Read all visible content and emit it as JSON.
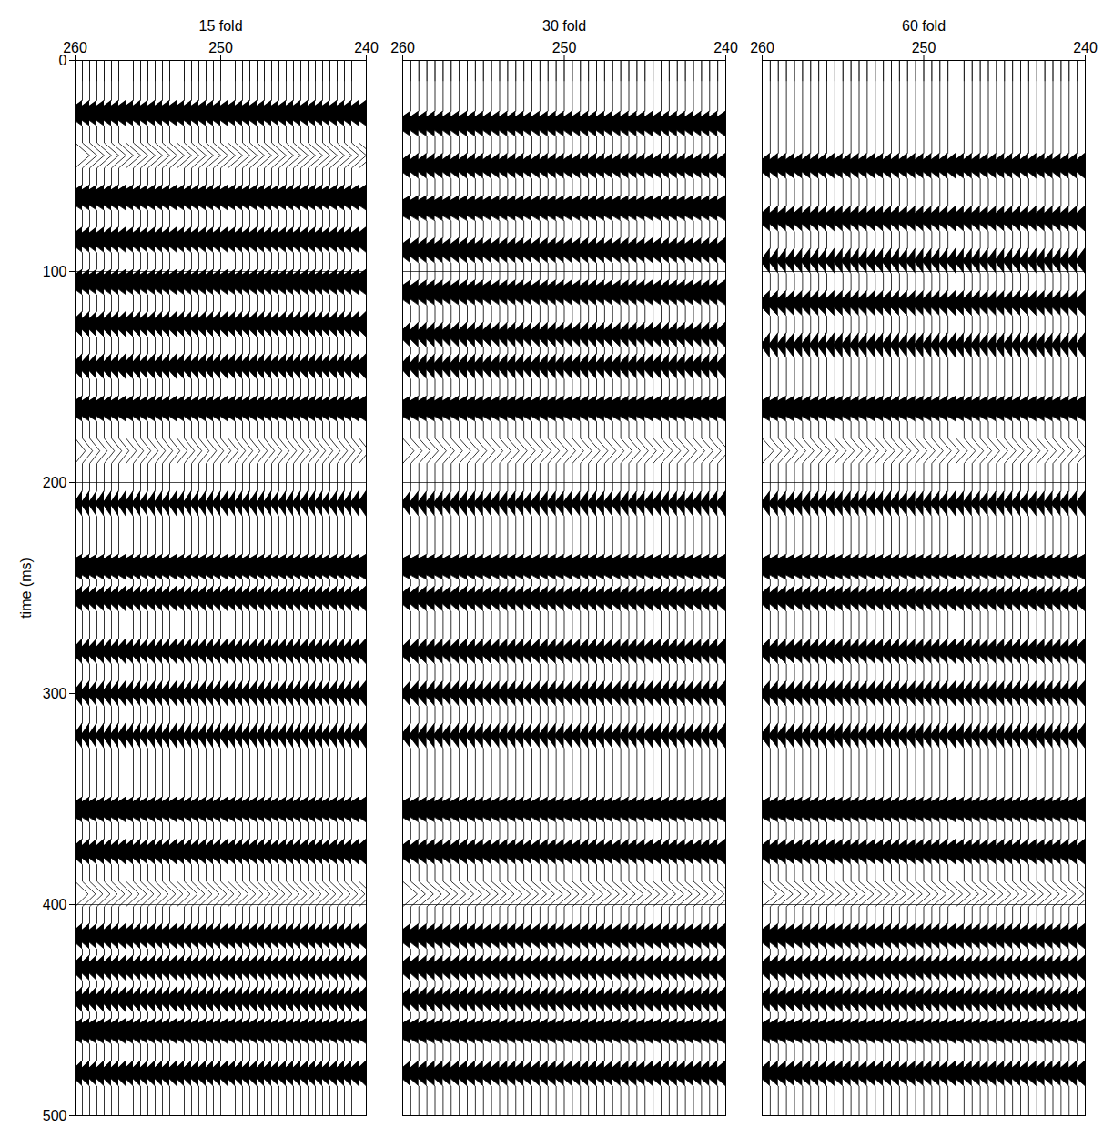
{
  "chart_data": [
    {
      "type": "wiggle",
      "title": "15 fold",
      "ylabel": "time (ms)",
      "x": [
        260,
        259.5,
        259,
        258.5,
        258,
        257.5,
        257,
        256.5,
        256,
        255.5,
        255,
        254.5,
        254,
        253.5,
        253,
        252.5,
        252,
        251.5,
        251,
        250.5,
        250,
        249.5,
        249,
        248.5,
        248,
        247.5,
        247,
        246.5,
        246,
        245.5,
        245,
        244.5,
        244,
        243.5,
        243,
        242.5,
        242,
        241.5,
        241,
        240.5,
        240
      ],
      "xlim": [
        260,
        240
      ],
      "xticks": [
        260,
        250,
        240
      ],
      "ylim": [
        0,
        500
      ],
      "yticks": [
        0,
        100,
        200,
        300,
        400,
        500
      ],
      "grid": true,
      "events": [
        {
          "time": 25,
          "amplitude": 1.2
        },
        {
          "time": 45,
          "amplitude": -1.0
        },
        {
          "time": 65,
          "amplitude": 1.3
        },
        {
          "time": 85,
          "amplitude": 1.1
        },
        {
          "time": 105,
          "amplitude": 1.2
        },
        {
          "time": 125,
          "amplitude": 0.9
        },
        {
          "time": 145,
          "amplitude": 0.8
        },
        {
          "time": 165,
          "amplitude": 1.3
        },
        {
          "time": 185,
          "amplitude": -0.7
        },
        {
          "time": 210,
          "amplitude": 0.6
        },
        {
          "time": 240,
          "amplitude": 1.4
        },
        {
          "time": 255,
          "amplitude": 0.9
        },
        {
          "time": 280,
          "amplitude": 0.8
        },
        {
          "time": 300,
          "amplitude": 0.7
        },
        {
          "time": 320,
          "amplitude": 0.6
        },
        {
          "time": 355,
          "amplitude": 1.3
        },
        {
          "time": 375,
          "amplitude": 1.0
        },
        {
          "time": 395,
          "amplitude": -0.9
        },
        {
          "time": 415,
          "amplitude": 1.0
        },
        {
          "time": 430,
          "amplitude": 0.9
        },
        {
          "time": 445,
          "amplitude": 0.8
        },
        {
          "time": 460,
          "amplitude": 1.3
        },
        {
          "time": 480,
          "amplitude": 0.9
        }
      ]
    },
    {
      "type": "wiggle",
      "title": "30 fold",
      "tick_labels": "x",
      "x": [
        260,
        259.5,
        259,
        258.5,
        258,
        257.5,
        257,
        256.5,
        256,
        255.5,
        255,
        254.5,
        254,
        253.5,
        253,
        252.5,
        252,
        251.5,
        251,
        250.5,
        250,
        249.5,
        249,
        248.5,
        248,
        247.5,
        247,
        246.5,
        246,
        245.5,
        245,
        244.5,
        244,
        243.5,
        243,
        242.5,
        242,
        241.5,
        241,
        240.5,
        240
      ],
      "xlim": [
        260,
        240
      ],
      "xticks": [
        260,
        250,
        240
      ],
      "ylim": [
        0,
        500
      ],
      "yticks": [
        0,
        100,
        200,
        300,
        400,
        500
      ],
      "grid": true,
      "events": [
        {
          "time": 30,
          "amplitude": 1.1
        },
        {
          "time": 50,
          "amplitude": 1.0
        },
        {
          "time": 70,
          "amplitude": 1.3
        },
        {
          "time": 90,
          "amplitude": 1.0
        },
        {
          "time": 110,
          "amplitude": 1.1
        },
        {
          "time": 130,
          "amplitude": 0.8
        },
        {
          "time": 145,
          "amplitude": 0.7
        },
        {
          "time": 165,
          "amplitude": 1.3
        },
        {
          "time": 185,
          "amplitude": -0.7
        },
        {
          "time": 210,
          "amplitude": 0.6
        },
        {
          "time": 240,
          "amplitude": 1.4
        },
        {
          "time": 255,
          "amplitude": 0.9
        },
        {
          "time": 280,
          "amplitude": 0.8
        },
        {
          "time": 300,
          "amplitude": 0.7
        },
        {
          "time": 320,
          "amplitude": 0.6
        },
        {
          "time": 355,
          "amplitude": 1.3
        },
        {
          "time": 375,
          "amplitude": 1.0
        },
        {
          "time": 395,
          "amplitude": -0.9
        },
        {
          "time": 415,
          "amplitude": 1.0
        },
        {
          "time": 430,
          "amplitude": 0.9
        },
        {
          "time": 445,
          "amplitude": 0.8
        },
        {
          "time": 460,
          "amplitude": 1.3
        },
        {
          "time": 480,
          "amplitude": 0.9
        }
      ]
    },
    {
      "type": "wiggle",
      "title": "60 fold",
      "tick_labels": "x",
      "x": [
        260,
        259.5,
        259,
        258.5,
        258,
        257.5,
        257,
        256.5,
        256,
        255.5,
        255,
        254.5,
        254,
        253.5,
        253,
        252.5,
        252,
        251.5,
        251,
        250.5,
        250,
        249.5,
        249,
        248.5,
        248,
        247.5,
        247,
        246.5,
        246,
        245.5,
        245,
        244.5,
        244,
        243.5,
        243,
        242.5,
        242,
        241.5,
        241,
        240.5,
        240
      ],
      "xlim": [
        260,
        240
      ],
      "xticks": [
        260,
        250,
        240
      ],
      "ylim": [
        0,
        500
      ],
      "yticks": [
        0,
        100,
        200,
        300,
        400,
        500
      ],
      "grid": true,
      "events": [
        {
          "time": 50,
          "amplitude": 1.0
        },
        {
          "time": 75,
          "amplitude": 0.9
        },
        {
          "time": 95,
          "amplitude": 0.6
        },
        {
          "time": 115,
          "amplitude": 0.8
        },
        {
          "time": 135,
          "amplitude": 0.6
        },
        {
          "time": 165,
          "amplitude": 1.3
        },
        {
          "time": 185,
          "amplitude": -0.7
        },
        {
          "time": 210,
          "amplitude": 0.6
        },
        {
          "time": 240,
          "amplitude": 1.4
        },
        {
          "time": 255,
          "amplitude": 0.9
        },
        {
          "time": 280,
          "amplitude": 0.8
        },
        {
          "time": 300,
          "amplitude": 0.7
        },
        {
          "time": 320,
          "amplitude": 0.6
        },
        {
          "time": 355,
          "amplitude": 1.3
        },
        {
          "time": 375,
          "amplitude": 1.0
        },
        {
          "time": 395,
          "amplitude": -0.9
        },
        {
          "time": 415,
          "amplitude": 1.0
        },
        {
          "time": 430,
          "amplitude": 0.9
        },
        {
          "time": 445,
          "amplitude": 0.8
        },
        {
          "time": 460,
          "amplitude": 1.3
        },
        {
          "time": 480,
          "amplitude": 0.9
        }
      ]
    }
  ]
}
